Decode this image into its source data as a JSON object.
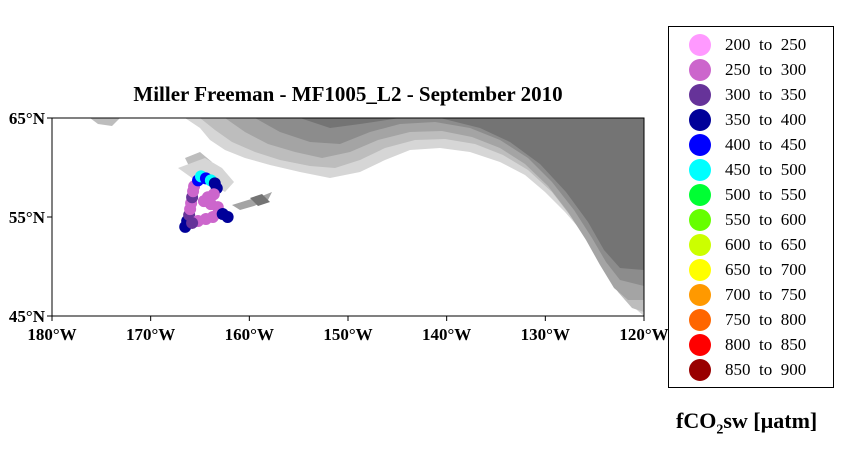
{
  "title": "Miller Freeman - MF1005_L2 - September 2010",
  "map": {
    "lon_range": [
      -180,
      -120
    ],
    "lat_range": [
      45,
      65
    ],
    "lat_ticks": [
      {
        "value": 65,
        "label": "65°N"
      },
      {
        "value": 55,
        "label": "55°N"
      },
      {
        "value": 45,
        "label": "45°N"
      }
    ],
    "lon_ticks": [
      {
        "value": -180,
        "label": "180°W"
      },
      {
        "value": -170,
        "label": "170°W"
      },
      {
        "value": -160,
        "label": "160°W"
      },
      {
        "value": -150,
        "label": "150°W"
      },
      {
        "value": -140,
        "label": "140°W"
      },
      {
        "value": -130,
        "label": "130°W"
      },
      {
        "value": -120,
        "label": "120°W"
      }
    ],
    "land_color": "#ffffff",
    "sea_shade_colors": [
      "#d6d6d6",
      "#bdbdbd",
      "#a4a4a4",
      "#8c8c8c",
      "#747474"
    ]
  },
  "cruise_track": [
    {
      "lon": -166.5,
      "lat": 54.0,
      "bin": 3
    },
    {
      "lon": -166.3,
      "lat": 54.6,
      "bin": 3
    },
    {
      "lon": -166.1,
      "lat": 55.2,
      "bin": 2
    },
    {
      "lon": -166.0,
      "lat": 55.8,
      "bin": 1
    },
    {
      "lon": -165.9,
      "lat": 56.4,
      "bin": 1
    },
    {
      "lon": -165.8,
      "lat": 57.0,
      "bin": 2
    },
    {
      "lon": -165.7,
      "lat": 57.6,
      "bin": 1
    },
    {
      "lon": -165.6,
      "lat": 58.1,
      "bin": 1
    },
    {
      "lon": -165.2,
      "lat": 58.7,
      "bin": 4
    },
    {
      "lon": -164.9,
      "lat": 59.1,
      "bin": 5
    },
    {
      "lon": -164.4,
      "lat": 58.9,
      "bin": 4
    },
    {
      "lon": -163.9,
      "lat": 58.7,
      "bin": 5
    },
    {
      "lon": -163.5,
      "lat": 58.4,
      "bin": 3
    },
    {
      "lon": -163.3,
      "lat": 57.9,
      "bin": 3
    },
    {
      "lon": -163.6,
      "lat": 57.3,
      "bin": 1
    },
    {
      "lon": -164.2,
      "lat": 57.0,
      "bin": 1
    },
    {
      "lon": -164.6,
      "lat": 56.6,
      "bin": 1
    },
    {
      "lon": -163.9,
      "lat": 56.3,
      "bin": 1
    },
    {
      "lon": -163.2,
      "lat": 56.0,
      "bin": 1
    },
    {
      "lon": -163.1,
      "lat": 55.4,
      "bin": 1
    },
    {
      "lon": -163.7,
      "lat": 55.0,
      "bin": 1
    },
    {
      "lon": -164.4,
      "lat": 54.8,
      "bin": 1
    },
    {
      "lon": -165.2,
      "lat": 54.6,
      "bin": 1
    },
    {
      "lon": -165.8,
      "lat": 54.4,
      "bin": 2
    },
    {
      "lon": -162.7,
      "lat": 55.3,
      "bin": 3
    },
    {
      "lon": -162.2,
      "lat": 55.0,
      "bin": 3
    }
  ],
  "legend": {
    "items": [
      {
        "label": "200  to  250",
        "color": "#ff99ff"
      },
      {
        "label": "250  to  300",
        "color": "#cc66cc"
      },
      {
        "label": "300  to  350",
        "color": "#663399"
      },
      {
        "label": "350  to  400",
        "color": "#000099"
      },
      {
        "label": "400  to  450",
        "color": "#0000ff"
      },
      {
        "label": "450  to  500",
        "color": "#00ffff"
      },
      {
        "label": "500  to  550",
        "color": "#00ff33"
      },
      {
        "label": "550  to  600",
        "color": "#66ff00"
      },
      {
        "label": "600  to  650",
        "color": "#ccff00"
      },
      {
        "label": "650  to  700",
        "color": "#ffff00"
      },
      {
        "label": "700  to  750",
        "color": "#ff9900"
      },
      {
        "label": "750  to  800",
        "color": "#ff6600"
      },
      {
        "label": "800  to  850",
        "color": "#ff0000"
      },
      {
        "label": "850  to  900",
        "color": "#990000"
      }
    ]
  },
  "units": {
    "main": "fCO",
    "sub": "2",
    "rest": "sw [µatm]"
  }
}
